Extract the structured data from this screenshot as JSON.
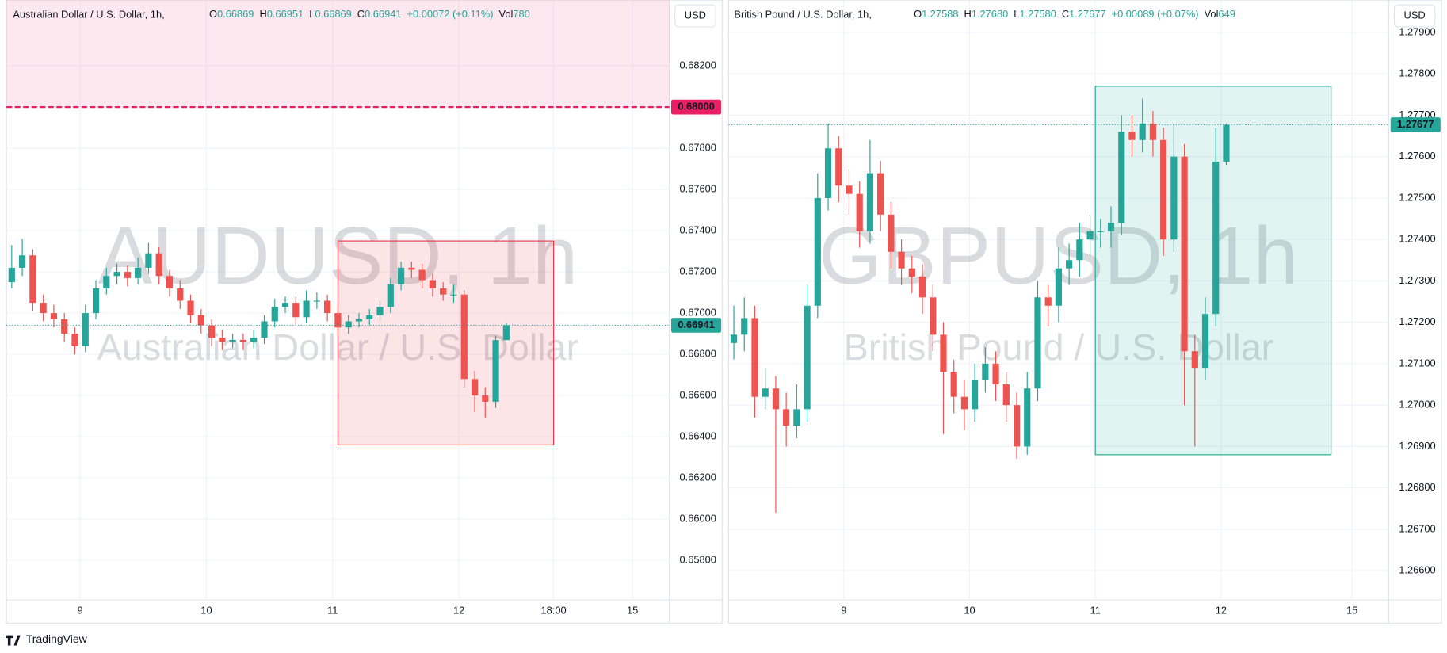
{
  "branding": "TradingView",
  "chart_data": [
    {
      "type": "candlestick",
      "title": "Australian Dollar / U.S. Dollar, 1h,",
      "symbol_watermark": "AUDUSD, 1h",
      "name_watermark": "Australian Dollar / U.S. Dollar",
      "legend": [
        {
          "key": "O",
          "value": "0.66869"
        },
        {
          "key": "H",
          "value": "0.66951"
        },
        {
          "key": "L",
          "value": "0.66869"
        },
        {
          "key": "C",
          "value": "0.66941"
        }
      ],
      "change": "+0.00072 (+0.11%)",
      "volume": {
        "key": "Vol",
        "value": "780"
      },
      "currency": "USD",
      "up_color": "#26a69a",
      "down_color": "#ef5350",
      "x": [
        -13,
        -11,
        -9,
        -7,
        -5,
        -3,
        -1,
        1,
        3,
        5,
        7,
        9,
        11,
        13,
        15,
        17,
        19,
        21,
        23,
        25,
        27,
        29,
        31,
        33,
        35,
        37,
        39,
        41,
        43,
        45,
        47,
        49,
        51,
        53,
        55,
        57,
        59,
        61,
        63,
        65,
        67,
        69,
        71,
        73,
        75,
        77,
        79,
        81
      ],
      "candles": [
        [
          0.6715,
          0.6733,
          0.6712,
          0.6722
        ],
        [
          0.6722,
          0.6736,
          0.6718,
          0.6728
        ],
        [
          0.6728,
          0.6731,
          0.6701,
          0.6705
        ],
        [
          0.6705,
          0.6709,
          0.6696,
          0.67
        ],
        [
          0.67,
          0.6704,
          0.6693,
          0.6697
        ],
        [
          0.6697,
          0.67,
          0.6686,
          0.669
        ],
        [
          0.669,
          0.6693,
          0.668,
          0.6684
        ],
        [
          0.6684,
          0.6704,
          0.6681,
          0.67
        ],
        [
          0.67,
          0.6716,
          0.6697,
          0.6712
        ],
        [
          0.6712,
          0.6722,
          0.6709,
          0.6718
        ],
        [
          0.6718,
          0.6724,
          0.6714,
          0.672
        ],
        [
          0.672,
          0.6723,
          0.6713,
          0.6717
        ],
        [
          0.6717,
          0.6727,
          0.6714,
          0.6722
        ],
        [
          0.6722,
          0.6734,
          0.6719,
          0.6729
        ],
        [
          0.6729,
          0.6732,
          0.6714,
          0.6718
        ],
        [
          0.6718,
          0.6721,
          0.6708,
          0.6712
        ],
        [
          0.6712,
          0.6716,
          0.6702,
          0.6706
        ],
        [
          0.6706,
          0.6709,
          0.6695,
          0.6699
        ],
        [
          0.6699,
          0.6702,
          0.669,
          0.6694
        ],
        [
          0.6694,
          0.6697,
          0.6684,
          0.6688
        ],
        [
          0.6688,
          0.6692,
          0.6682,
          0.6686
        ],
        [
          0.6686,
          0.669,
          0.6683,
          0.6687
        ],
        [
          0.6687,
          0.669,
          0.6682,
          0.6686
        ],
        [
          0.6686,
          0.6692,
          0.6683,
          0.6688
        ],
        [
          0.6688,
          0.6699,
          0.6685,
          0.6696
        ],
        [
          0.6696,
          0.6707,
          0.6693,
          0.6703
        ],
        [
          0.6703,
          0.6708,
          0.67,
          0.6705
        ],
        [
          0.6705,
          0.6708,
          0.6694,
          0.6698
        ],
        [
          0.6698,
          0.6711,
          0.6695,
          0.6706
        ],
        [
          0.6706,
          0.671,
          0.6702,
          0.6706
        ],
        [
          0.6706,
          0.6709,
          0.6696,
          0.67
        ],
        [
          0.67,
          0.6703,
          0.6689,
          0.6693
        ],
        [
          0.6693,
          0.6699,
          0.669,
          0.6696
        ],
        [
          0.6696,
          0.67,
          0.6693,
          0.6697
        ],
        [
          0.6697,
          0.6702,
          0.6694,
          0.6699
        ],
        [
          0.6699,
          0.6706,
          0.6696,
          0.6703
        ],
        [
          0.6703,
          0.6717,
          0.67,
          0.6714
        ],
        [
          0.6714,
          0.6725,
          0.6711,
          0.6722
        ],
        [
          0.6722,
          0.6725,
          0.6717,
          0.6721
        ],
        [
          0.6721,
          0.6724,
          0.6712,
          0.6716
        ],
        [
          0.6716,
          0.6719,
          0.6708,
          0.6712
        ],
        [
          0.6712,
          0.6715,
          0.6706,
          0.6709
        ],
        [
          0.6709,
          0.6714,
          0.6705,
          0.6709
        ],
        [
          0.6709,
          0.6711,
          0.6664,
          0.6668
        ],
        [
          0.6668,
          0.6672,
          0.6652,
          0.666
        ],
        [
          0.666,
          0.6664,
          0.6649,
          0.6657
        ],
        [
          0.6657,
          0.6689,
          0.6654,
          0.66869
        ],
        [
          0.66869,
          0.66951,
          0.66869,
          0.66941
        ]
      ],
      "xlim": [
        -14,
        112
      ],
      "xticks": [
        {
          "value": 0,
          "label": "9"
        },
        {
          "value": 24,
          "label": "10"
        },
        {
          "value": 48,
          "label": "11"
        },
        {
          "value": 72,
          "label": "12"
        },
        {
          "value": 90,
          "label": "18:00"
        },
        {
          "value": 105,
          "label": "15"
        }
      ],
      "ylim": [
        0.65607,
        0.68519
      ],
      "yticks": [
        {
          "value": 0.682,
          "label": "0.68200"
        },
        {
          "value": 0.68,
          "label": "0.68000"
        },
        {
          "value": 0.678,
          "label": "0.67800"
        },
        {
          "value": 0.676,
          "label": "0.67600"
        },
        {
          "value": 0.674,
          "label": "0.67400"
        },
        {
          "value": 0.672,
          "label": "0.67200"
        },
        {
          "value": 0.67,
          "label": "0.67000"
        },
        {
          "value": 0.668,
          "label": "0.66800"
        },
        {
          "value": 0.666,
          "label": "0.66600"
        },
        {
          "value": 0.664,
          "label": "0.66400"
        },
        {
          "value": 0.662,
          "label": "0.66200"
        },
        {
          "value": 0.66,
          "label": "0.66000"
        },
        {
          "value": 0.658,
          "label": "0.65800"
        }
      ],
      "last_price": {
        "value": 0.66941,
        "label": "0.66941"
      },
      "level_line": {
        "value": 0.68,
        "label": "0.68000",
        "color": "#e91e63"
      },
      "rectangle": {
        "x": [
          49,
          90
        ],
        "y": [
          0.6636,
          0.6735
        ],
        "color": "#f23645"
      }
    },
    {
      "type": "candlestick",
      "title": "British Pound / U.S. Dollar, 1h,",
      "symbol_watermark": "GBPUSD, 1h",
      "name_watermark": "British Pound / U.S. Dollar",
      "legend": [
        {
          "key": "O",
          "value": "1.27588"
        },
        {
          "key": "H",
          "value": "1.27680"
        },
        {
          "key": "L",
          "value": "1.27580"
        },
        {
          "key": "C",
          "value": "1.27677"
        }
      ],
      "change": "+0.00089 (+0.07%)",
      "volume": {
        "key": "Vol",
        "value": "649"
      },
      "currency": "USD",
      "up_color": "#26a69a",
      "down_color": "#ef5350",
      "x": [
        -21,
        -19,
        -17,
        -15,
        -13,
        -11,
        -9,
        -7,
        -5,
        -3,
        -1,
        1,
        3,
        5,
        7,
        9,
        11,
        13,
        15,
        17,
        19,
        21,
        23,
        25,
        27,
        29,
        31,
        33,
        35,
        37,
        39,
        41,
        43,
        45,
        47,
        49,
        51,
        53,
        55,
        57,
        59,
        61,
        63,
        65,
        67,
        69,
        71,
        73
      ],
      "candles": [
        [
          1.2715,
          1.2724,
          1.2711,
          1.2717
        ],
        [
          1.2717,
          1.2726,
          1.2713,
          1.2721
        ],
        [
          1.2721,
          1.2724,
          1.2697,
          1.2702
        ],
        [
          1.2702,
          1.2709,
          1.2699,
          1.2704
        ],
        [
          1.2704,
          1.2707,
          1.2674,
          1.2699
        ],
        [
          1.2699,
          1.2703,
          1.269,
          1.2695
        ],
        [
          1.2695,
          1.2705,
          1.2692,
          1.2699
        ],
        [
          1.2699,
          1.2729,
          1.2696,
          1.2724
        ],
        [
          1.2724,
          1.2756,
          1.2721,
          1.275
        ],
        [
          1.275,
          1.2768,
          1.2747,
          1.2762
        ],
        [
          1.2762,
          1.2765,
          1.2749,
          1.2753
        ],
        [
          1.2753,
          1.2757,
          1.2746,
          1.2751
        ],
        [
          1.2751,
          1.2754,
          1.2738,
          1.2742
        ],
        [
          1.2742,
          1.2764,
          1.2739,
          1.2756
        ],
        [
          1.2756,
          1.2759,
          1.2742,
          1.2746
        ],
        [
          1.2746,
          1.2749,
          1.2733,
          1.2737
        ],
        [
          1.2737,
          1.274,
          1.2729,
          1.2733
        ],
        [
          1.2733,
          1.2736,
          1.2727,
          1.2731
        ],
        [
          1.2731,
          1.2734,
          1.2722,
          1.2726
        ],
        [
          1.2726,
          1.2729,
          1.2713,
          1.2717
        ],
        [
          1.2717,
          1.272,
          1.2693,
          1.2708
        ],
        [
          1.2708,
          1.2711,
          1.2698,
          1.2702
        ],
        [
          1.2702,
          1.2706,
          1.2694,
          1.2699
        ],
        [
          1.2699,
          1.271,
          1.2696,
          1.2706
        ],
        [
          1.2706,
          1.2714,
          1.2703,
          1.271
        ],
        [
          1.271,
          1.2713,
          1.2701,
          1.2705
        ],
        [
          1.2705,
          1.2708,
          1.2696,
          1.27
        ],
        [
          1.27,
          1.2703,
          1.2687,
          1.269
        ],
        [
          1.269,
          1.2708,
          1.2688,
          1.2704
        ],
        [
          1.2704,
          1.273,
          1.2701,
          1.2726
        ],
        [
          1.2726,
          1.2729,
          1.2719,
          1.2724
        ],
        [
          1.2724,
          1.2738,
          1.272,
          1.2733
        ],
        [
          1.2733,
          1.2739,
          1.2729,
          1.2735
        ],
        [
          1.2735,
          1.2744,
          1.2731,
          1.274
        ],
        [
          1.274,
          1.2746,
          1.2736,
          1.2742
        ],
        [
          1.2742,
          1.2745,
          1.2738,
          1.2742
        ],
        [
          1.2742,
          1.2748,
          1.2738,
          1.2744
        ],
        [
          1.2744,
          1.277,
          1.2741,
          1.2766
        ],
        [
          1.2766,
          1.277,
          1.276,
          1.2764
        ],
        [
          1.2764,
          1.2774,
          1.2761,
          1.2768
        ],
        [
          1.2768,
          1.2771,
          1.276,
          1.2764
        ],
        [
          1.2764,
          1.2767,
          1.2736,
          1.274
        ],
        [
          1.274,
          1.2768,
          1.2737,
          1.276
        ],
        [
          1.276,
          1.2763,
          1.27,
          1.2713
        ],
        [
          1.2713,
          1.2717,
          1.269,
          1.2709
        ],
        [
          1.2709,
          1.2726,
          1.2706,
          1.2722
        ],
        [
          1.2722,
          1.2767,
          1.2719,
          1.27588
        ],
        [
          1.27588,
          1.2768,
          1.2758,
          1.27677
        ]
      ],
      "xlim": [
        -22,
        104
      ],
      "xticks": [
        {
          "value": 0,
          "label": "9"
        },
        {
          "value": 24,
          "label": "10"
        },
        {
          "value": 48,
          "label": "11"
        },
        {
          "value": 72,
          "label": "12"
        },
        {
          "value": 97,
          "label": "15"
        }
      ],
      "ylim": [
        1.26529,
        1.27978
      ],
      "yticks": [
        {
          "value": 1.279,
          "label": "1.27900"
        },
        {
          "value": 1.278,
          "label": "1.27800"
        },
        {
          "value": 1.277,
          "label": "1.27700"
        },
        {
          "value": 1.276,
          "label": "1.27600"
        },
        {
          "value": 1.275,
          "label": "1.27500"
        },
        {
          "value": 1.274,
          "label": "1.27400"
        },
        {
          "value": 1.273,
          "label": "1.27300"
        },
        {
          "value": 1.272,
          "label": "1.27200"
        },
        {
          "value": 1.271,
          "label": "1.27100"
        },
        {
          "value": 1.27,
          "label": "1.27000"
        },
        {
          "value": 1.269,
          "label": "1.26900"
        },
        {
          "value": 1.268,
          "label": "1.26800"
        },
        {
          "value": 1.267,
          "label": "1.26700"
        },
        {
          "value": 1.266,
          "label": "1.26600"
        }
      ],
      "last_price": {
        "value": 1.27677,
        "label": "1.27677"
      },
      "rectangle": {
        "x": [
          48,
          93
        ],
        "y": [
          1.2688,
          1.2777
        ],
        "color": "#22ab94"
      }
    }
  ]
}
